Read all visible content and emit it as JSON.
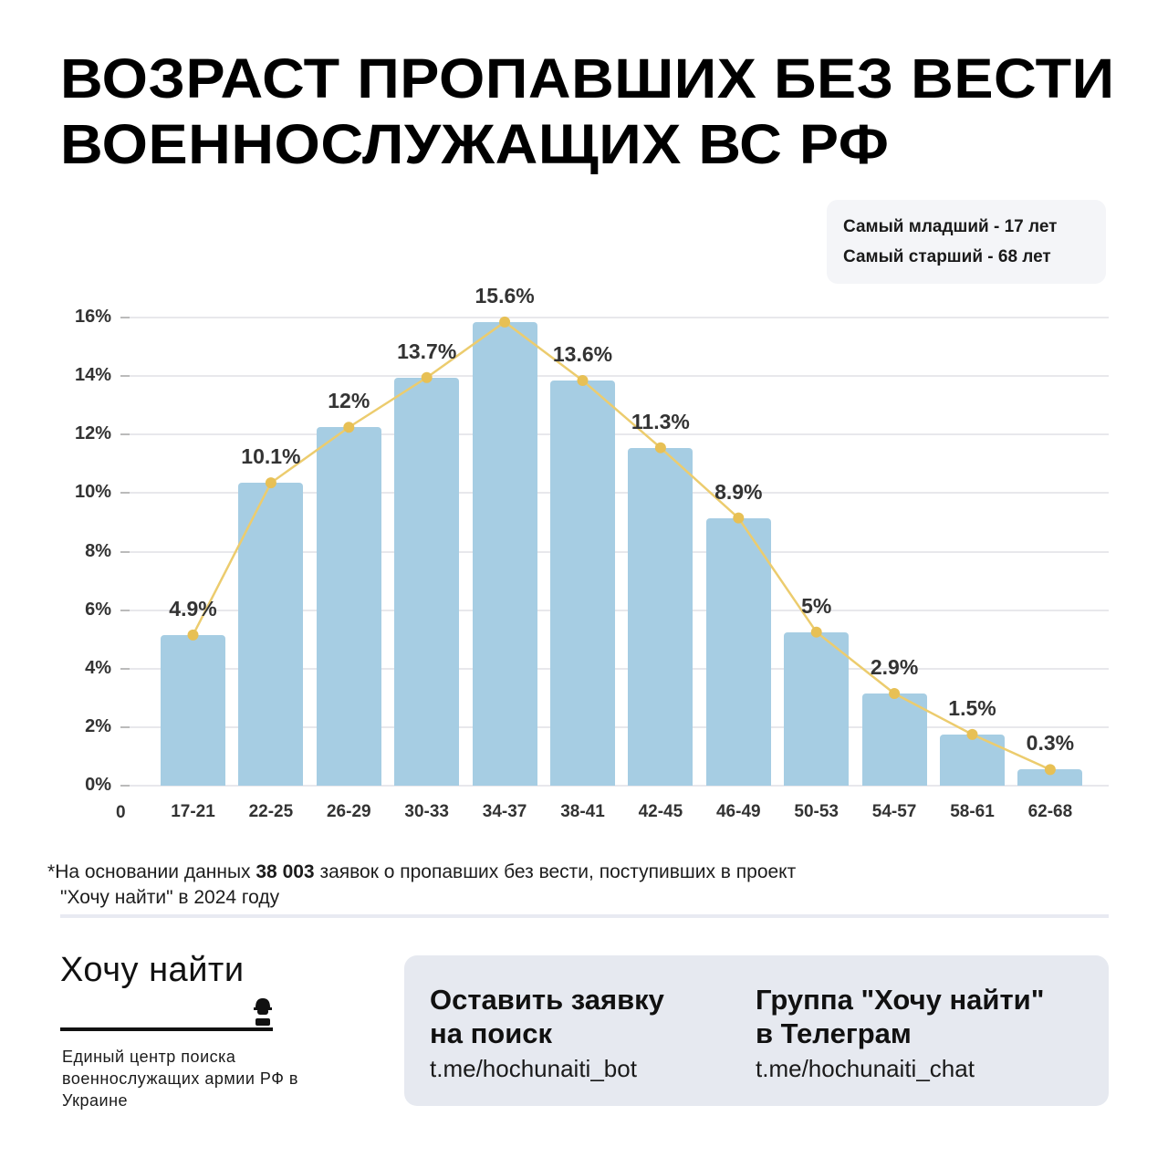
{
  "header": {
    "title_line1": "ВОЗРАСТ ПРОПАВШИХ БЕЗ ВЕСТИ",
    "title_line2": "ВОЕННОСЛУЖАЩИХ ВС РФ"
  },
  "infobox": {
    "youngest": "Самый младший - 17 лет",
    "oldest": "Самый старший - 68 лет"
  },
  "colors": {
    "bar": "#a6cde3",
    "line": "#eccc6e",
    "marker": "#e7c055",
    "grid": "#e8e8ec",
    "cta_bg": "#e6e9f0"
  },
  "chart_data": {
    "type": "bar",
    "title": "Возраст пропавших без вести военнослужащих ВС РФ",
    "xlabel": "",
    "ylabel": "",
    "x_origin_label": "0",
    "categories": [
      "17-21",
      "22-25",
      "26-29",
      "30-33",
      "34-37",
      "38-41",
      "42-45",
      "46-49",
      "50-53",
      "54-57",
      "58-61",
      "62-68"
    ],
    "values": [
      4.9,
      10.1,
      12,
      13.7,
      15.6,
      13.6,
      11.3,
      8.9,
      5,
      2.9,
      1.5,
      0.3
    ],
    "value_labels": [
      "4.9%",
      "10.1%",
      "12%",
      "13.7%",
      "15.6%",
      "13.6%",
      "11.3%",
      "8.9%",
      "5%",
      "2.9%",
      "1.5%",
      "0.3%"
    ],
    "overlay_line": true,
    "yticks": [
      "0%",
      "2%",
      "4%",
      "6%",
      "8%",
      "10%",
      "12%",
      "14%",
      "16%"
    ],
    "ylim": [
      0,
      16
    ],
    "grid": true,
    "legend": null
  },
  "footnote": {
    "asterisk": "*",
    "before": "На основании данных ",
    "count": "38 003",
    "after": " заявок о пропавших без вести, поступивших в проект",
    "line2": "\"Хочу найти\" в 2024 году"
  },
  "brand": {
    "name": "Хочу найти",
    "icon": "soldier-helmet-icon",
    "subtitle": "Единый центр поиска военнослужащих армии РФ в Украине"
  },
  "cta": {
    "bot_heading_1": "Оставить заявку",
    "bot_heading_2": "на поиск",
    "bot_link": "t.me/hochunaiti_bot",
    "chat_heading_1": "Группа \"Хочу найти\"",
    "chat_heading_2": "в Телеграм",
    "chat_link": "t.me/hochunaiti_chat"
  }
}
